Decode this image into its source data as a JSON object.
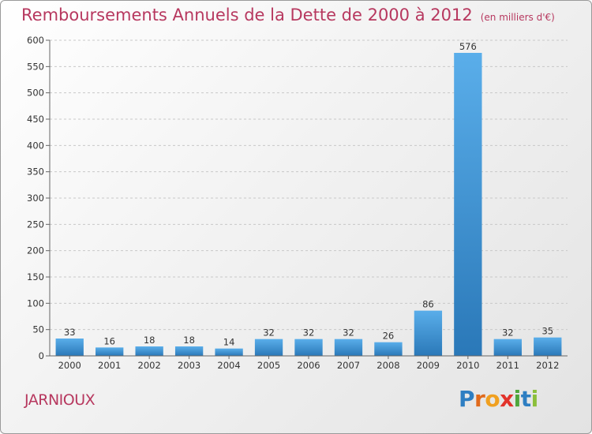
{
  "title": "Remboursements Annuels de la Dette de 2000 à 2012",
  "unit": "(en milliers d'€)",
  "place": "JARNIOUX",
  "logo": {
    "text": "Proxiti",
    "letters": [
      {
        "ch": "P",
        "color": "#2e7ec2"
      },
      {
        "ch": "r",
        "color": "#e06a1c"
      },
      {
        "ch": "o",
        "color": "#f0a020"
      },
      {
        "ch": "x",
        "color": "#e2332b"
      },
      {
        "ch": "i",
        "color": "#4fa63c"
      },
      {
        "ch": "t",
        "color": "#2e7ec2"
      },
      {
        "ch": "i",
        "color": "#8bbf3b"
      }
    ]
  },
  "chart_data": {
    "type": "bar",
    "title": "Remboursements Annuels de la Dette de 2000 à 2012",
    "xlabel": "",
    "ylabel": "",
    "ylim": [
      0,
      600
    ],
    "yticks": [
      0,
      50,
      100,
      150,
      200,
      250,
      300,
      350,
      400,
      450,
      500,
      550,
      600
    ],
    "grid": true,
    "categories": [
      "2000",
      "2001",
      "2002",
      "2003",
      "2004",
      "2005",
      "2006",
      "2007",
      "2008",
      "2009",
      "2010",
      "2011",
      "2012"
    ],
    "values": [
      33,
      16,
      18,
      18,
      14,
      32,
      32,
      32,
      26,
      86,
      576,
      32,
      35
    ],
    "bar_color": "#3d8fd6"
  }
}
